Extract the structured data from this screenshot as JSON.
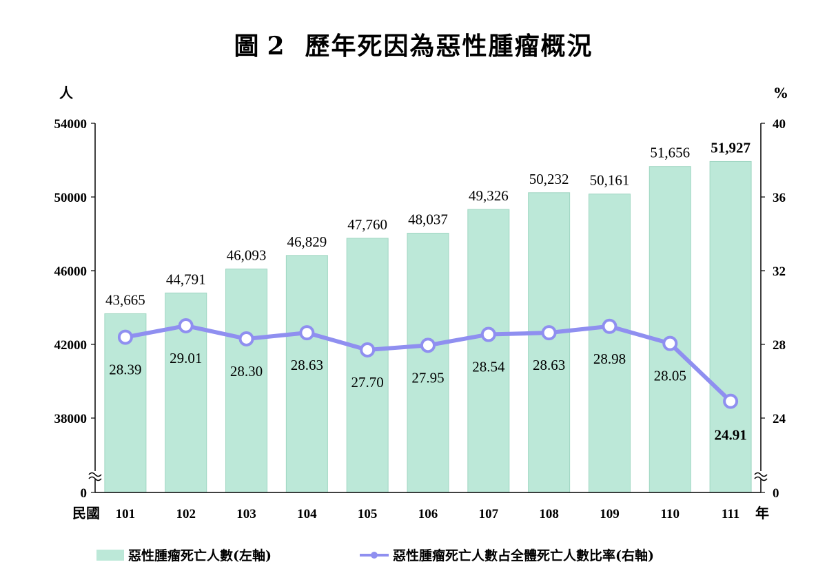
{
  "title_prefix": "圖",
  "title_number": "2",
  "title_text": "歷年死因為惡性腫瘤概況",
  "left_unit": "人",
  "right_unit": "%",
  "x_prefix": "民國",
  "x_suffix": "年",
  "colors": {
    "bar": "#bce8d8",
    "bar_edge": "#9fd6c2",
    "line": "#8f8ff0",
    "marker_fill": "#ffffff"
  },
  "chart_data": {
    "type": "bar",
    "categories": [
      "101",
      "102",
      "103",
      "104",
      "105",
      "106",
      "107",
      "108",
      "109",
      "110",
      "111"
    ],
    "left_axis": {
      "ticks": [
        "0",
        "38000",
        "42000",
        "46000",
        "50000",
        "54000"
      ],
      "break": true,
      "ylim": [
        34000,
        54000
      ]
    },
    "right_axis": {
      "ticks": [
        "0",
        "24",
        "28",
        "32",
        "36",
        "40"
      ],
      "break": true,
      "ylim": [
        20,
        40
      ]
    },
    "series": [
      {
        "name": "惡性腫瘤死亡人數(左軸)",
        "type": "bar",
        "axis": "left",
        "values": [
          43665,
          44791,
          46093,
          46829,
          47760,
          48037,
          49326,
          50232,
          50161,
          51656,
          51927
        ],
        "labels": [
          "43,665",
          "44,791",
          "46,093",
          "46,829",
          "47,760",
          "48,037",
          "49,326",
          "50,232",
          "50,161",
          "51,656",
          "51,927"
        ]
      },
      {
        "name": "惡性腫瘤死亡人數占全體死亡人數比率(右軸)",
        "type": "line",
        "axis": "right",
        "values": [
          28.39,
          29.01,
          28.3,
          28.63,
          27.7,
          27.95,
          28.54,
          28.63,
          28.98,
          28.05,
          24.91
        ],
        "labels": [
          "28.39",
          "29.01",
          "28.30",
          "28.63",
          "27.70",
          "27.95",
          "28.54",
          "28.63",
          "28.98",
          "28.05",
          "24.91"
        ]
      }
    ]
  }
}
